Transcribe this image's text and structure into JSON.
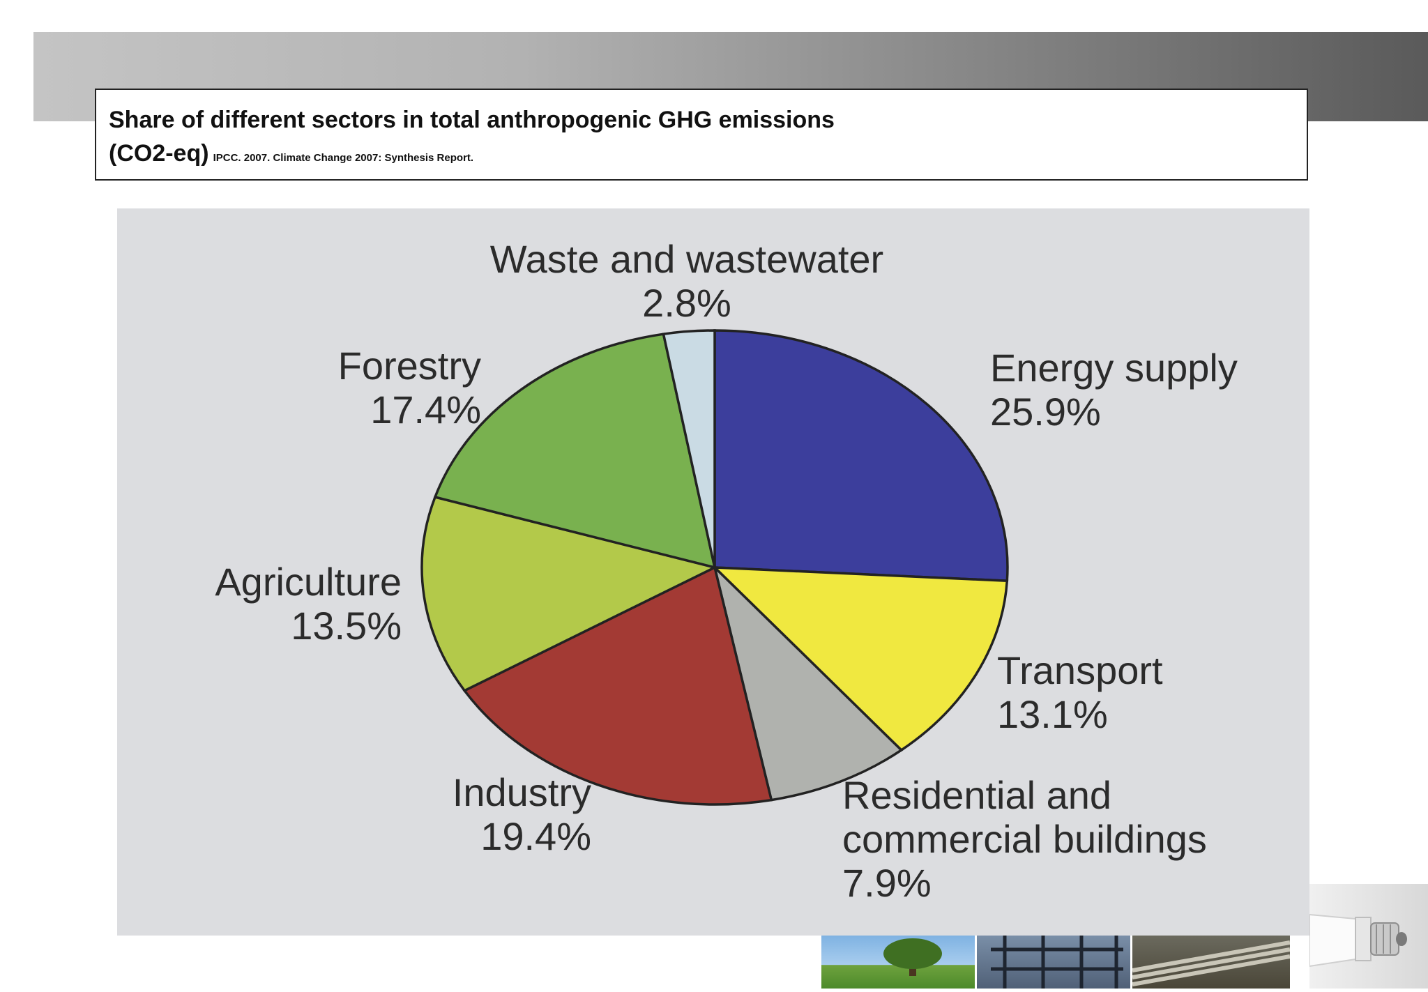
{
  "header": {
    "title_line1": "Share of different sectors in total anthropogenic GHG emissions",
    "title_line2": "(CO2-eq)",
    "source": "IPCC. 2007. Climate Change 2007: Synthesis Report."
  },
  "chart_data": {
    "type": "pie",
    "title": "",
    "start": "12 o'clock, clockwise",
    "slices": [
      {
        "label": "Energy supply",
        "value": 25.9,
        "value_label": "25.9%",
        "color": "#3c3e9c"
      },
      {
        "label": "Transport",
        "value": 13.1,
        "value_label": "13.1%",
        "color": "#f0e840"
      },
      {
        "label": "Residential and commercial buildings",
        "label_lines": [
          "Residential and",
          "commercial buildings"
        ],
        "value": 7.9,
        "value_label": "7.9%",
        "color": "#b0b2ae"
      },
      {
        "label": "Industry",
        "value": 19.4,
        "value_label": "19.4%",
        "color": "#a33a34"
      },
      {
        "label": "Agriculture",
        "value": 13.5,
        "value_label": "13.5%",
        "color": "#b3c94a"
      },
      {
        "label": "Forestry",
        "value": 17.4,
        "value_label": "17.4%",
        "color": "#79b14f"
      },
      {
        "label": "Waste and wastewater",
        "value": 2.8,
        "value_label": "2.8%",
        "color": "#cadbe4"
      }
    ],
    "legend": "none (slice labels placed around the pie)"
  },
  "decor": {
    "photos": [
      "tree-landscape",
      "power-grid",
      "pipeline"
    ],
    "icon": "light-bulb-icon"
  }
}
